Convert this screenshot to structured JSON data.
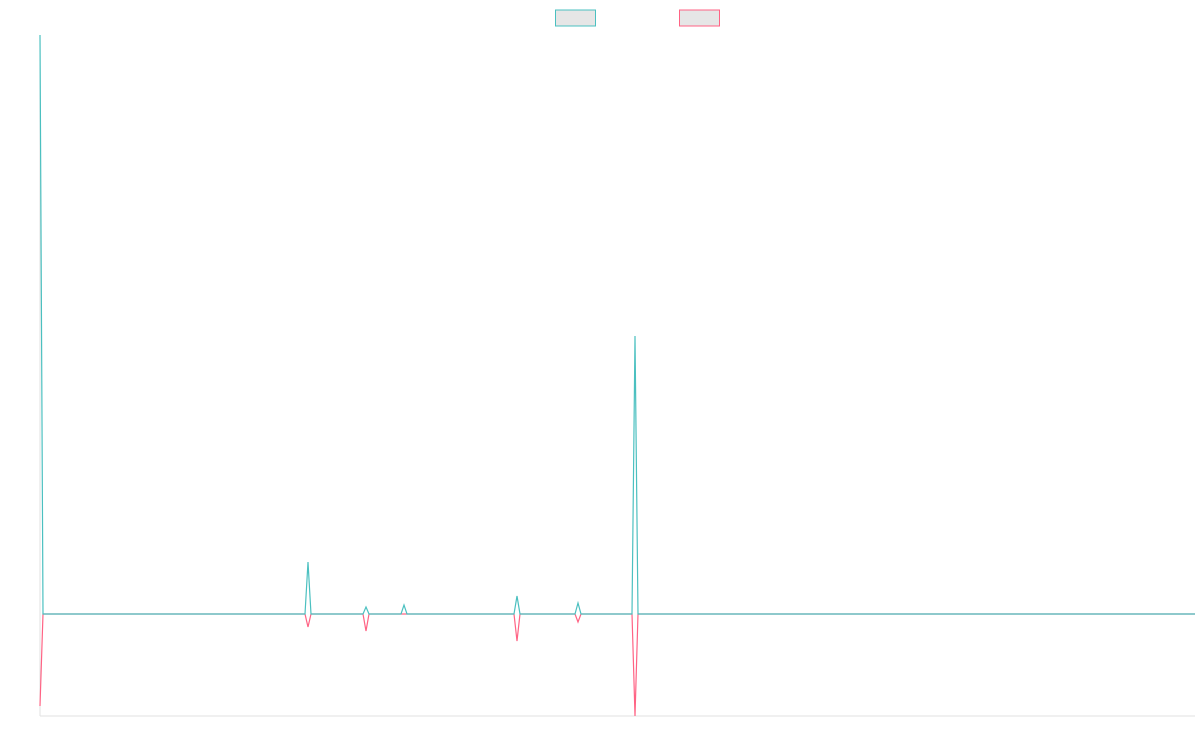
{
  "chart_data": {
    "type": "line",
    "x": [
      0,
      3,
      265,
      268,
      271,
      323,
      326,
      329,
      361,
      364,
      367,
      474,
      477,
      480,
      535,
      538,
      541,
      592,
      595,
      598,
      1155
    ],
    "series": [
      {
        "color": "#4bc0c0",
        "values": [
          579,
          0,
          0,
          52,
          0,
          0,
          7,
          0,
          0,
          9,
          0,
          0,
          18,
          0,
          0,
          11,
          0,
          0,
          278,
          0,
          0
        ]
      },
      {
        "color": "#ff6384",
        "values": [
          -92,
          0,
          0,
          -13,
          0,
          0,
          -17,
          0,
          0,
          0,
          0,
          0,
          -27,
          0,
          0,
          -8,
          0,
          0,
          -102,
          0,
          0
        ]
      }
    ],
    "xlim": [
      0,
      1155
    ],
    "ylim": [
      -102,
      579
    ],
    "legend": "top"
  }
}
